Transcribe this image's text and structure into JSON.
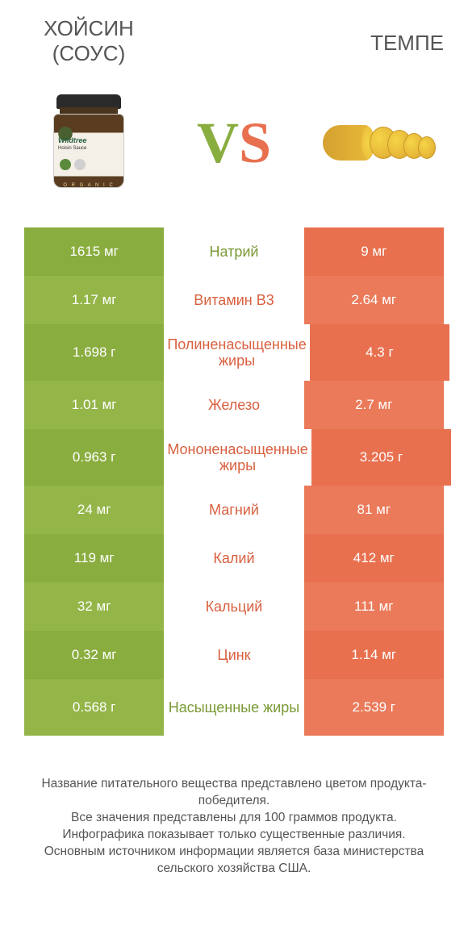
{
  "header": {
    "left_title_line1": "ХОЙСИН",
    "left_title_line2": "(СОУС)",
    "right_title": "ТЕМПЕ",
    "jar_brand": "Wildtree",
    "jar_sub": "Hoisin Sauce",
    "jar_org": "O R G A N I C"
  },
  "colors": {
    "green_primary": "#8aad3f",
    "green_alt": "#94b548",
    "orange_primary": "#e8704f",
    "orange_alt": "#ea7a5a",
    "nutrient_green": "#7a9a35",
    "nutrient_orange": "#d8603f",
    "row_bg": "#ffffff"
  },
  "rows": [
    {
      "left": "1615 мг",
      "mid": "Натрий",
      "right": "9 мг",
      "winner": "left",
      "tall": false
    },
    {
      "left": "1.17 мг",
      "mid": "Витамин B3",
      "right": "2.64 мг",
      "winner": "right",
      "tall": false
    },
    {
      "left": "1.698 г",
      "mid": "Полиненасыщенные жиры",
      "right": "4.3 г",
      "winner": "right",
      "tall": true
    },
    {
      "left": "1.01 мг",
      "mid": "Железо",
      "right": "2.7 мг",
      "winner": "right",
      "tall": false
    },
    {
      "left": "0.963 г",
      "mid": "Мононенасыщенные жиры",
      "right": "3.205 г",
      "winner": "right",
      "tall": true
    },
    {
      "left": "24 мг",
      "mid": "Магний",
      "right": "81 мг",
      "winner": "right",
      "tall": false
    },
    {
      "left": "119 мг",
      "mid": "Калий",
      "right": "412 мг",
      "winner": "right",
      "tall": false
    },
    {
      "left": "32 мг",
      "mid": "Кальций",
      "right": "111 мг",
      "winner": "right",
      "tall": false
    },
    {
      "left": "0.32 мг",
      "mid": "Цинк",
      "right": "1.14 мг",
      "winner": "right",
      "tall": false
    },
    {
      "left": "0.568 г",
      "mid": "Насыщенные жиры",
      "right": "2.539 г",
      "winner": "left",
      "tall": true
    }
  ],
  "footer": {
    "line1": "Название питательного вещества представлено цветом продукта-победителя.",
    "line2": "Все значения представлены для 100 граммов продукта.",
    "line3": "Инфографика показывает только существенные различия.",
    "line4": "Основным источником информации является база министерства сельского хозяйства США."
  }
}
